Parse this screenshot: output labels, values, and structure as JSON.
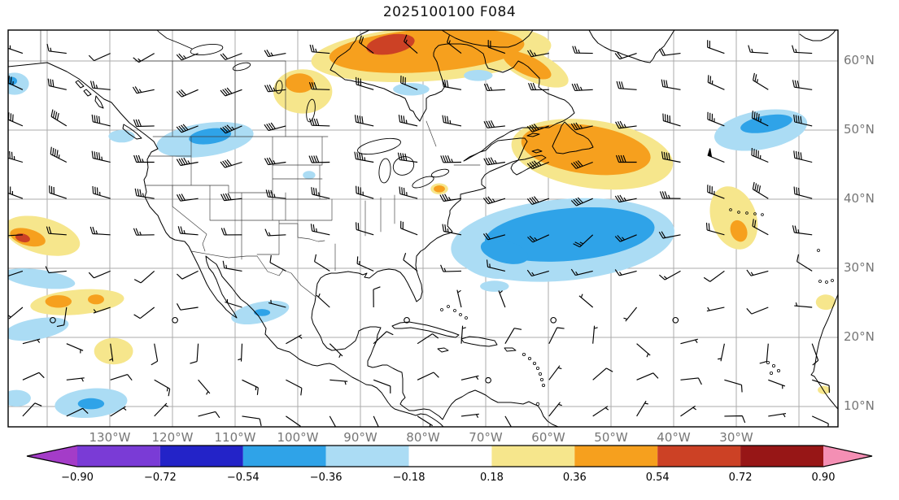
{
  "chart_data": {
    "type": "heatmap",
    "title": "2025100100 F084",
    "map_region": "North America and North Atlantic, lat-lon grid with wind barbs and filled anomaly contours",
    "grid_spacing_deg": 10,
    "x_ticks": [
      {
        "lon": -130,
        "label": "130°W"
      },
      {
        "lon": -120,
        "label": "120°W"
      },
      {
        "lon": -110,
        "label": "110°W"
      },
      {
        "lon": -100,
        "label": "100°W"
      },
      {
        "lon": -90,
        "label": "90°W"
      },
      {
        "lon": -80,
        "label": "80°W"
      },
      {
        "lon": -70,
        "label": "70°W"
      },
      {
        "lon": -60,
        "label": "60°W"
      },
      {
        "lon": -50,
        "label": "50°W"
      },
      {
        "lon": -40,
        "label": "40°W"
      },
      {
        "lon": -30,
        "label": "30°W"
      }
    ],
    "y_ticks": [
      {
        "lat": 60,
        "label": "60°N"
      },
      {
        "lat": 50,
        "label": "50°N"
      },
      {
        "lat": 40,
        "label": "40°N"
      },
      {
        "lat": 30,
        "label": "30°N"
      },
      {
        "lat": 20,
        "label": "20°N"
      },
      {
        "lat": 10,
        "label": "10°N"
      }
    ],
    "projection": {
      "lon_west": -146.2,
      "lon_east": -13.8,
      "lat_south": 7.1,
      "lat_north": 64.5
    },
    "contour_levels": [
      -0.9,
      -0.72,
      -0.54,
      -0.36,
      -0.18,
      0.18,
      0.36,
      0.54,
      0.72,
      0.9
    ],
    "colorbar": {
      "tick_labels": [
        "−0.90",
        "−0.72",
        "−0.54",
        "−0.36",
        "−0.18",
        "0.18",
        "0.36",
        "0.54",
        "0.72",
        "0.90"
      ],
      "colors": [
        "#7a3bd6",
        "#2323c8",
        "#2fa3e8",
        "#abdcf4",
        "#ffffff",
        "#f6e68c",
        "#f6a01e",
        "#cc4125",
        "#971616"
      ],
      "extend_left": "#a43cc8",
      "extend_right": "#f48fb4"
    },
    "shaded_regions": [
      {
        "lon": -78.7,
        "lat": 61.1,
        "rlon": 19.2,
        "rlat": 4.0,
        "rot": -4,
        "level": 1
      },
      {
        "lon": -79.4,
        "lat": 61.5,
        "rlon": 15.6,
        "rlat": 3.1,
        "rot": -4,
        "level": 2
      },
      {
        "lon": -85.2,
        "lat": 62.4,
        "rlon": 3.9,
        "rlat": 1.4,
        "rot": -10,
        "level": 3
      },
      {
        "lon": -62.5,
        "lat": 59.2,
        "rlon": 6.2,
        "rlat": 2.1,
        "rot": 25,
        "level": 1
      },
      {
        "lon": -63.4,
        "lat": 59.4,
        "rlon": 4.2,
        "rlat": 1.4,
        "rot": 25,
        "level": 2
      },
      {
        "lon": -99.2,
        "lat": 55.6,
        "rlon": 4.7,
        "rlat": 3.2,
        "rot": 0,
        "level": 1
      },
      {
        "lon": -99.7,
        "lat": 56.8,
        "rlon": 2.3,
        "rlat": 1.4,
        "rot": 0,
        "level": 2
      },
      {
        "lon": -81.9,
        "lat": 55.9,
        "rlon": 2.9,
        "rlat": 0.9,
        "rot": 0,
        "level": -1
      },
      {
        "lon": -71.2,
        "lat": 57.9,
        "rlon": 2.3,
        "rlat": 0.8,
        "rot": 0,
        "level": -1
      },
      {
        "lon": -114.8,
        "lat": 48.6,
        "rlon": 7.8,
        "rlat": 2.4,
        "rot": -8,
        "level": -1
      },
      {
        "lon": -114.0,
        "lat": 49.1,
        "rlon": 3.4,
        "rlat": 1.1,
        "rot": -8,
        "level": -2
      },
      {
        "lon": -98.2,
        "lat": 43.5,
        "rlon": 1.0,
        "rlat": 0.6,
        "rot": 0,
        "level": -1
      },
      {
        "lon": -128.1,
        "lat": 49.1,
        "rlon": 2.1,
        "rlat": 0.9,
        "rot": 0,
        "level": -1
      },
      {
        "lon": -53.0,
        "lat": 46.5,
        "rlon": 13.0,
        "rlat": 4.9,
        "rot": 8,
        "level": 1
      },
      {
        "lon": -54.0,
        "lat": 47.2,
        "rlon": 10.4,
        "rlat": 3.5,
        "rot": 8,
        "level": 2
      },
      {
        "lon": -57.7,
        "lat": 34.1,
        "rlon": 17.9,
        "rlat": 5.9,
        "rot": -5,
        "level": -1
      },
      {
        "lon": -69.9,
        "lat": 31.4,
        "rlon": 5.2,
        "rlat": 2.6,
        "rot": 20,
        "level": -1
      },
      {
        "lon": -56.6,
        "lat": 34.9,
        "rlon": 13.6,
        "rlat": 3.8,
        "rot": -5,
        "level": -2
      },
      {
        "lon": -67.0,
        "lat": 32.4,
        "rlon": 3.9,
        "rlat": 1.6,
        "rot": 15,
        "level": -2
      },
      {
        "lon": -68.6,
        "lat": 27.4,
        "rlon": 2.3,
        "rlat": 0.8,
        "rot": 0,
        "level": -1
      },
      {
        "lon": -26.1,
        "lat": 50.0,
        "rlon": 7.5,
        "rlat": 2.8,
        "rot": -10,
        "level": -1
      },
      {
        "lon": -25.2,
        "lat": 50.9,
        "rlon": 4.2,
        "rlat": 1.2,
        "rot": -10,
        "level": -2
      },
      {
        "lon": -30.4,
        "lat": 37.3,
        "rlon": 3.6,
        "rlat": 4.7,
        "rot": -20,
        "level": 1
      },
      {
        "lon": -29.6,
        "lat": 35.4,
        "rlon": 1.3,
        "rlat": 1.6,
        "rot": -20,
        "level": 2
      },
      {
        "lon": -15.7,
        "lat": 25.1,
        "rlon": 1.6,
        "rlat": 1.1,
        "rot": 0,
        "level": 1
      },
      {
        "lon": -140.8,
        "lat": 34.7,
        "rlon": 6.2,
        "rlat": 2.6,
        "rot": 15,
        "level": 1
      },
      {
        "lon": -143.1,
        "lat": 34.5,
        "rlon": 2.9,
        "rlat": 1.2,
        "rot": 15,
        "level": 2
      },
      {
        "lon": -143.9,
        "lat": 34.4,
        "rlon": 1.2,
        "rlat": 0.6,
        "rot": 15,
        "level": 3
      },
      {
        "lon": -141.3,
        "lat": 28.5,
        "rlon": 5.8,
        "rlat": 1.3,
        "rot": 8,
        "level": -1
      },
      {
        "lon": -135.2,
        "lat": 25.1,
        "rlon": 7.5,
        "rlat": 1.8,
        "rot": -5,
        "level": 1
      },
      {
        "lon": -138.2,
        "lat": 25.2,
        "rlon": 2.1,
        "rlat": 0.9,
        "rot": 0,
        "level": 2
      },
      {
        "lon": -132.2,
        "lat": 25.5,
        "rlon": 1.3,
        "rlat": 0.7,
        "rot": 0,
        "level": 2
      },
      {
        "lon": -141.7,
        "lat": 21.2,
        "rlon": 5.2,
        "rlat": 1.5,
        "rot": -10,
        "level": -1
      },
      {
        "lon": -129.4,
        "lat": 18.0,
        "rlon": 3.1,
        "rlat": 1.9,
        "rot": 0,
        "level": 1
      },
      {
        "lon": -106.0,
        "lat": 23.6,
        "rlon": 4.7,
        "rlat": 1.5,
        "rot": -12,
        "level": -1
      },
      {
        "lon": -105.7,
        "lat": 23.6,
        "rlon": 1.3,
        "rlat": 0.5,
        "rot": 0,
        "level": -2
      },
      {
        "lon": -133.0,
        "lat": 10.5,
        "rlon": 5.8,
        "rlat": 2.1,
        "rot": -5,
        "level": -1
      },
      {
        "lon": -133.0,
        "lat": 10.4,
        "rlon": 2.1,
        "rlat": 0.8,
        "rot": 0,
        "level": -2
      },
      {
        "lon": -144.9,
        "lat": 11.2,
        "rlon": 2.3,
        "rlat": 1.2,
        "rot": 0,
        "level": -1
      },
      {
        "lon": -77.4,
        "lat": 41.5,
        "rlon": 1.4,
        "rlat": 0.8,
        "rot": 0,
        "level": 1
      },
      {
        "lon": -77.4,
        "lat": 41.5,
        "rlon": 0.9,
        "rlat": 0.5,
        "rot": 0,
        "level": 2
      },
      {
        "lon": -145.2,
        "lat": 56.7,
        "rlon": 2.3,
        "rlat": 1.6,
        "rot": 0,
        "level": -1
      },
      {
        "lon": -145.7,
        "lat": 57.1,
        "rlon": 0.9,
        "rlat": 0.6,
        "rot": 0,
        "level": -2
      },
      {
        "lon": -16.0,
        "lat": 12.4,
        "rlon": 1.0,
        "rlat": 0.6,
        "rot": 0,
        "level": 1
      }
    ],
    "wind_barbs": {
      "grid": {
        "lon_start": -143.9,
        "lon_step": 7.0,
        "cols": 19,
        "lat_start": 61.1,
        "lat_step": 5.25,
        "rows": 11
      },
      "seed": 11,
      "units": "kt"
    },
    "calm_circles": [
      {
        "lon": -139.1,
        "lat": 22.5
      },
      {
        "lon": -119.6,
        "lat": 22.5
      },
      {
        "lon": -82.6,
        "lat": 22.5
      },
      {
        "lon": -59.2,
        "lat": 22.5
      },
      {
        "lon": -39.7,
        "lat": 22.5
      },
      {
        "lon": -69.6,
        "lat": 13.8
      }
    ]
  }
}
